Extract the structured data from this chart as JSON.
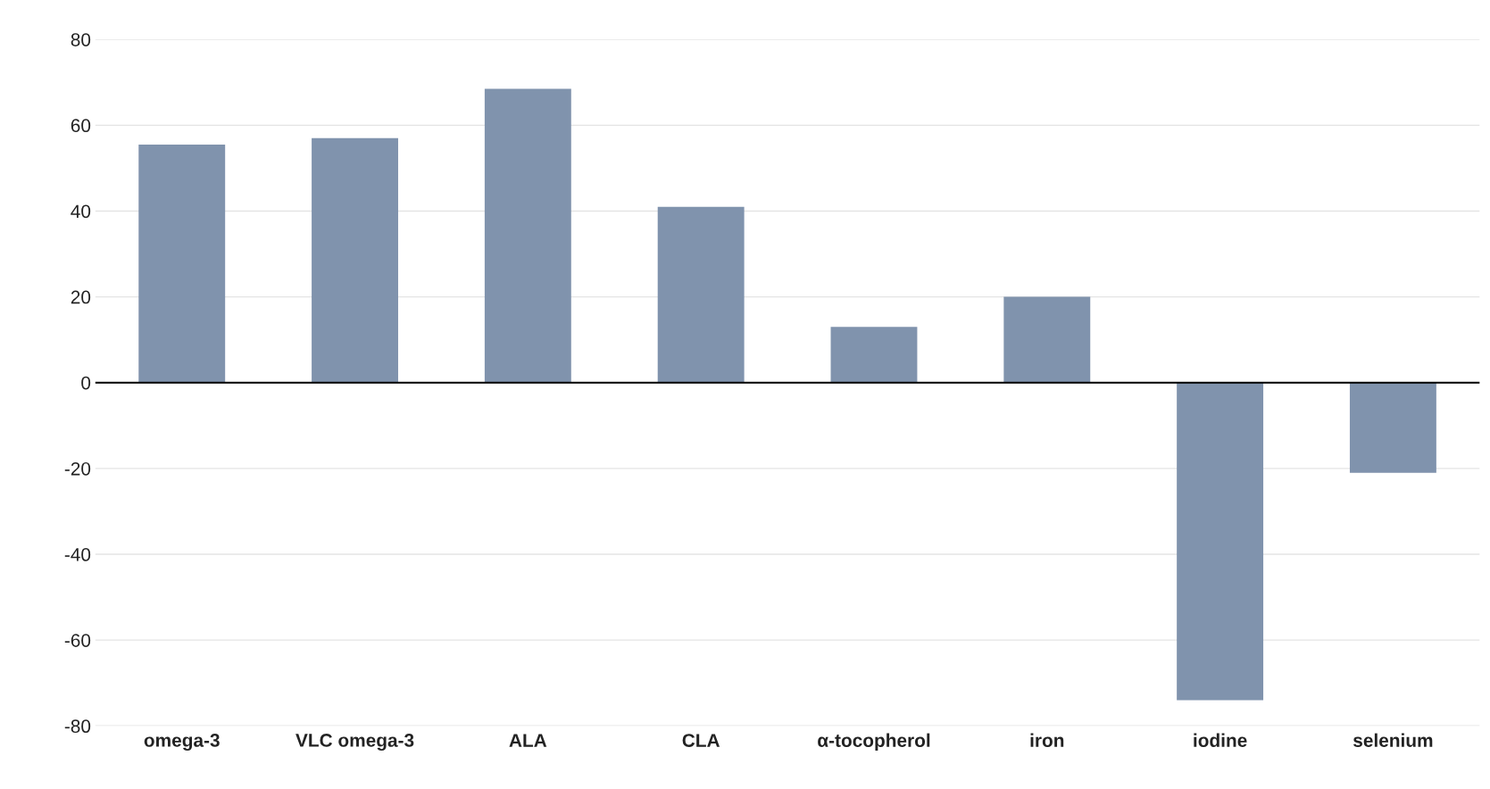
{
  "chart_data": {
    "type": "bar",
    "categories": [
      "omega-3",
      "VLC omega-3",
      "ALA",
      "CLA",
      "α-tocopherol",
      "iron",
      "iodine",
      "selenium"
    ],
    "values": [
      55.5,
      57,
      68.5,
      41,
      13,
      20,
      -74,
      -21
    ],
    "color": "#8093ad",
    "ylim": [
      -80,
      80
    ],
    "yticks": [
      -80,
      -60,
      -40,
      -20,
      0,
      20,
      40,
      60,
      80
    ],
    "grid": "y",
    "legend": false
  }
}
